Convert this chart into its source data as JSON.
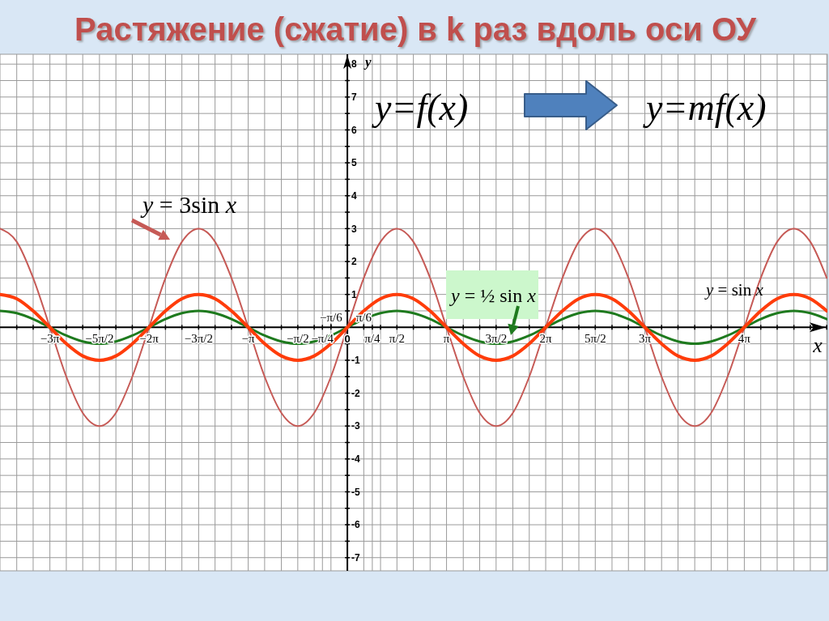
{
  "chart_data": {
    "type": "line",
    "title": "Растяжение (сжатие) в k раз вдоль оси ОУ",
    "xlabel": "x",
    "ylabel": "y",
    "annotations": [
      "y=f(x)",
      "y=mf(x)"
    ],
    "x": [
      -11,
      -10.47,
      -9.95,
      -9.42,
      -8.9,
      -8.38,
      -7.85,
      -7.33,
      -6.81,
      -6.28,
      -5.76,
      -5.24,
      -4.71,
      -4.19,
      -3.67,
      -3.14,
      -2.62,
      -2.09,
      -1.57,
      -1.05,
      -0.52,
      0,
      0.52,
      1.05,
      1.57,
      2.09,
      2.62,
      3.14,
      3.67,
      4.19,
      4.71,
      5.24,
      5.76,
      6.28,
      6.81,
      7.33,
      7.85,
      8.38,
      8.9,
      9.42,
      9.95,
      10.47,
      11,
      11.52,
      12.04,
      12.57,
      13.09,
      13.61,
      14.14,
      14.66,
      15.18
    ],
    "series": [
      {
        "name": "y = 3sin x",
        "color": "#c65a56",
        "values": [
          3,
          2.6,
          1.5,
          0,
          -1.5,
          -2.6,
          -3,
          -2.6,
          -1.5,
          0,
          1.5,
          2.6,
          3,
          2.6,
          1.5,
          0,
          -1.5,
          -2.6,
          -3,
          -2.6,
          -1.5,
          0,
          1.5,
          2.6,
          3,
          2.6,
          1.5,
          0,
          -1.5,
          -2.6,
          -3,
          -2.6,
          -1.5,
          0,
          1.5,
          2.6,
          3,
          2.6,
          1.5,
          0,
          -1.5,
          -2.6,
          -3,
          -2.6,
          -1.5,
          0,
          1.5,
          2.6,
          3,
          2.6,
          1.5
        ]
      },
      {
        "name": "y = ½ sin x",
        "color": "#1e7a1e",
        "values": [
          0.5,
          0.43,
          0.25,
          0,
          -0.25,
          -0.43,
          -0.5,
          -0.43,
          -0.25,
          0,
          0.25,
          0.43,
          0.5,
          0.43,
          0.25,
          0,
          -0.25,
          -0.43,
          -0.5,
          -0.43,
          -0.25,
          0,
          0.25,
          0.43,
          0.5,
          0.43,
          0.25,
          0,
          -0.25,
          -0.43,
          -0.5,
          -0.43,
          -0.25,
          0,
          0.25,
          0.43,
          0.5,
          0.43,
          0.25,
          0,
          -0.25,
          -0.43,
          -0.5,
          -0.43,
          -0.25,
          0,
          0.25,
          0.43,
          0.5,
          0.43,
          0.25
        ]
      },
      {
        "name": "y = sin x",
        "color": "#ff3c0a",
        "values": [
          1,
          0.87,
          0.5,
          0,
          -0.5,
          -0.87,
          -1,
          -0.87,
          -0.5,
          0,
          0.5,
          0.87,
          1,
          0.87,
          0.5,
          0,
          -0.5,
          -0.87,
          -1,
          -0.87,
          -0.5,
          0,
          0.5,
          0.87,
          1,
          0.87,
          0.5,
          0,
          -0.5,
          -0.87,
          -1,
          -0.87,
          -0.5,
          0,
          0.5,
          0.87,
          1,
          0.87,
          0.5,
          0,
          -0.5,
          -0.87,
          -1,
          -0.87,
          -0.5,
          0,
          0.5,
          0.87,
          1,
          0.87,
          0.5
        ]
      }
    ],
    "xlim": [
      -11,
      15.2
    ],
    "xticks": [
      {
        "value": -10.47,
        "label": null
      },
      {
        "value": -9.95,
        "label": null
      },
      {
        "value": -9.42,
        "label": "−3π"
      },
      {
        "value": -8.9,
        "label": null
      },
      {
        "value": -8.38,
        "label": null
      },
      {
        "value": -7.85,
        "label": "−5π/2"
      },
      {
        "value": -7.33,
        "label": null
      },
      {
        "value": -6.81,
        "label": null
      },
      {
        "value": -6.28,
        "label": "−2π"
      },
      {
        "value": -5.76,
        "label": null
      },
      {
        "value": -5.24,
        "label": null
      },
      {
        "value": -4.71,
        "label": "−3π/2"
      },
      {
        "value": -4.19,
        "label": null
      },
      {
        "value": -3.67,
        "label": null
      },
      {
        "value": -3.14,
        "label": "−π"
      },
      {
        "value": -2.62,
        "label": null
      },
      {
        "value": -2.09,
        "label": null
      },
      {
        "value": -1.57,
        "label": "−π/2"
      },
      {
        "value": -1.05,
        "label": null
      },
      {
        "value": -0.79,
        "label": "−π/4"
      },
      {
        "value": -0.52,
        "label": null
      },
      0,
      {
        "value": 0.52,
        "label": null
      },
      {
        "value": 0.79,
        "label": "π/4"
      },
      {
        "value": 1.05,
        "label": null
      },
      {
        "value": 1.57,
        "label": "π/2"
      },
      {
        "value": 2.09,
        "label": null
      },
      {
        "value": 2.62,
        "label": null
      },
      {
        "value": 3.14,
        "label": "π"
      },
      {
        "value": 3.67,
        "label": null
      },
      {
        "value": 4.19,
        "label": null
      },
      {
        "value": 4.71,
        "label": "3π/2"
      },
      {
        "value": 5.24,
        "label": null
      },
      {
        "value": 5.76,
        "label": null
      },
      {
        "value": 6.28,
        "label": "2π"
      },
      {
        "value": 6.81,
        "label": null
      },
      {
        "value": 7.33,
        "label": null
      },
      {
        "value": 7.85,
        "label": "5π/2"
      },
      {
        "value": 8.38,
        "label": null
      },
      {
        "value": 8.9,
        "label": null
      },
      {
        "value": 9.42,
        "label": "3π"
      },
      {
        "value": 9.95,
        "label": null
      },
      {
        "value": 10.47,
        "label": null
      },
      {
        "value": 11,
        "label": null
      },
      {
        "value": 11.52,
        "label": null
      },
      {
        "value": 12.04,
        "label": null
      },
      {
        "value": 12.57,
        "label": "4π"
      },
      {
        "value": 13.09,
        "label": null
      },
      {
        "value": 13.61,
        "label": null
      },
      {
        "value": 14.14,
        "label": null
      },
      {
        "value": 14.66,
        "label": null
      },
      {
        "value": 15.18,
        "label": null
      }
    ],
    "x2lim": [
      -11,
      15.2
    ],
    "x2ticks": [
      {
        "value": -0.52,
        "label": "−π/6"
      },
      {
        "value": 0.52,
        "label": "π/6"
      }
    ],
    "ylim": [
      -7.4,
      8.3
    ],
    "yticks": [
      -7,
      {
        "value": -6.5,
        "label": null
      },
      -6,
      {
        "value": -5.5,
        "label": null
      },
      -5,
      {
        "value": -4.5,
        "label": null
      },
      -4,
      {
        "value": -3.5,
        "label": null
      },
      -3,
      {
        "value": -2.5,
        "label": null
      },
      -2,
      {
        "value": -1.5,
        "label": null
      },
      -1,
      {
        "value": -0.5,
        "label": null
      },
      {
        "value": 0,
        "label": null
      },
      {
        "value": 0.5,
        "label": null
      },
      1,
      {
        "value": 1.5,
        "label": null
      },
      2,
      {
        "value": 2.5,
        "label": null
      },
      3,
      {
        "value": 3.5,
        "label": null
      },
      4,
      {
        "value": 4.5,
        "label": null
      },
      5,
      {
        "value": 5.5,
        "label": null
      },
      6,
      {
        "value": 6.5,
        "label": null
      },
      7,
      {
        "value": 7.5,
        "label": null
      },
      8
    ],
    "grid": true
  }
}
